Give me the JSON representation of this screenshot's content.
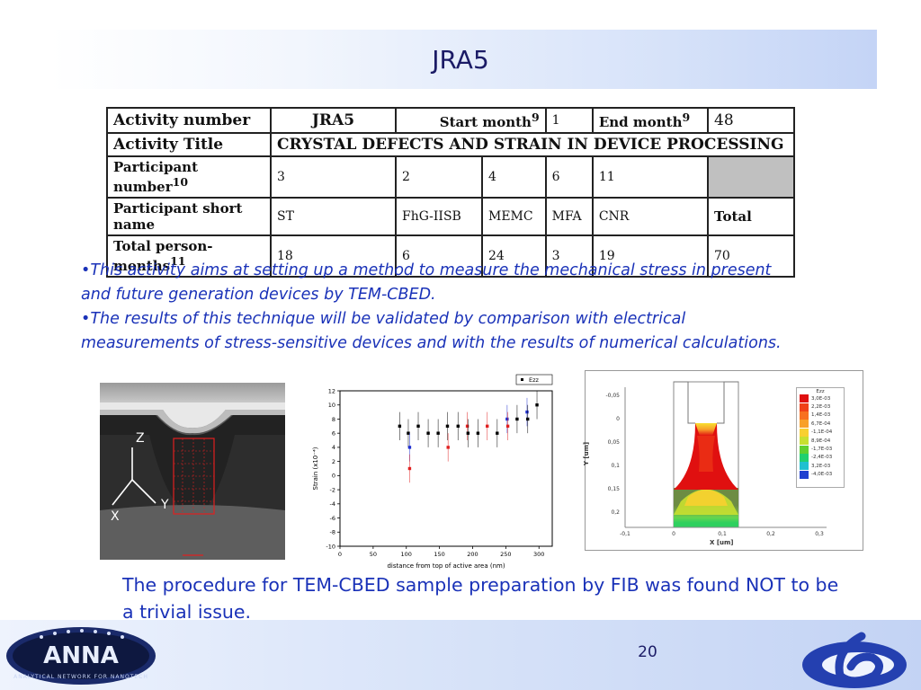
{
  "slide": {
    "title": "JRA5",
    "page_number": "20"
  },
  "activity_table": {
    "activity_number_label": "Activity number",
    "activity_number": "JRA5",
    "start_month_label": "Start month",
    "start_month_sup": "9",
    "start_month": "1",
    "end_month_label": "End month",
    "end_month_sup": "9",
    "end_month": "48",
    "activity_title_label": "Activity Title",
    "activity_title": "CRYSTAL DEFECTS AND STRAIN IN DEVICE PROCESSING",
    "participant_number_label": "Participant number",
    "participant_number_sup": "10",
    "participant_numbers": [
      "3",
      "2",
      "4",
      "6",
      "11"
    ],
    "participant_short_name_label": "Participant short name",
    "participant_short_names": [
      "ST",
      "FhG-IISB",
      "MEMC",
      "MFA",
      "CNR"
    ],
    "total_label": "Total",
    "total_person_months_label": "Total person-months",
    "total_person_months_sup": "11",
    "person_months": [
      "18",
      "6",
      "24",
      "3",
      "19"
    ],
    "total_person_months": "70"
  },
  "bullets": [
    "•This activity aims at setting up a method to measure the mechanical stress in present and future generation devices by TEM-CBED.",
    "•The results of this technique will be validated by comparison with electrical measurements of stress-sensitive devices and with the results of numerical calculations."
  ],
  "fib_image": {
    "axis_z": "Z",
    "axis_y": "Y",
    "axis_x": "X"
  },
  "chart_data": [
    {
      "type": "scatter",
      "xlabel": "distance from top of active area (nm)",
      "ylabel": "Strain (x10⁻⁴)",
      "xlim": [
        0,
        320
      ],
      "ylim": [
        -10,
        12
      ],
      "x_ticks": [
        0,
        50,
        100,
        150,
        200,
        250,
        300
      ],
      "y_ticks": [
        -10,
        -8,
        -6,
        -4,
        -2,
        0,
        2,
        4,
        6,
        8,
        10,
        12
      ],
      "legend": [
        "Ezz"
      ],
      "legend_position": "top-right",
      "points": [
        {
          "x": 90,
          "y": 7,
          "err": 2,
          "color": "#000000"
        },
        {
          "x": 103,
          "y": 6,
          "err": 2,
          "color": "#000000"
        },
        {
          "x": 105,
          "y": 4,
          "err": 2,
          "color": "#1f2fd0"
        },
        {
          "x": 105,
          "y": 1,
          "err": 2,
          "color": "#e02020"
        },
        {
          "x": 118,
          "y": 7,
          "err": 2,
          "color": "#000000"
        },
        {
          "x": 133,
          "y": 6,
          "err": 2,
          "color": "#000000"
        },
        {
          "x": 148,
          "y": 6,
          "err": 2,
          "color": "#000000"
        },
        {
          "x": 162,
          "y": 7,
          "err": 2,
          "color": "#000000"
        },
        {
          "x": 163,
          "y": 4,
          "err": 2,
          "color": "#e02020"
        },
        {
          "x": 178,
          "y": 7,
          "err": 2,
          "color": "#000000"
        },
        {
          "x": 192,
          "y": 7,
          "err": 2,
          "color": "#e02020"
        },
        {
          "x": 193,
          "y": 6,
          "err": 2,
          "color": "#000000"
        },
        {
          "x": 208,
          "y": 6,
          "err": 2,
          "color": "#000000"
        },
        {
          "x": 222,
          "y": 7,
          "err": 2,
          "color": "#e02020"
        },
        {
          "x": 237,
          "y": 6,
          "err": 2,
          "color": "#000000"
        },
        {
          "x": 252,
          "y": 8,
          "err": 2,
          "color": "#1f2fd0"
        },
        {
          "x": 253,
          "y": 7,
          "err": 2,
          "color": "#e02020"
        },
        {
          "x": 267,
          "y": 8,
          "err": 2,
          "color": "#000000"
        },
        {
          "x": 282,
          "y": 9,
          "err": 2,
          "color": "#1f2fd0"
        },
        {
          "x": 283,
          "y": 8,
          "err": 2,
          "color": "#000000"
        },
        {
          "x": 297,
          "y": 10,
          "err": 2,
          "color": "#000000"
        }
      ]
    },
    {
      "type": "heatmap",
      "xlabel": "X [um]",
      "ylabel": "Y [um]",
      "x_ticks": [
        "-0,1",
        "0",
        "0,1",
        "0,2",
        "0,3"
      ],
      "y_ticks": [
        "-0,05",
        "0",
        "0,05",
        "0,1",
        "0,15",
        "0,2"
      ],
      "legend_title": "Ezz",
      "legend_position": "top-right",
      "legend_levels": [
        {
          "label": "3,0E-03",
          "color": "#e01010"
        },
        {
          "label": "2,2E-03",
          "color": "#f04018"
        },
        {
          "label": "1,4E-03",
          "color": "#f87020"
        },
        {
          "label": "6,7E-04",
          "color": "#f8a028"
        },
        {
          "label": "-1,1E-04",
          "color": "#f8d030"
        },
        {
          "label": "8,9E-04",
          "color": "#c8e030"
        },
        {
          "label": "-1,7E-03",
          "color": "#60d030"
        },
        {
          "label": "-2,4E-03",
          "color": "#20d070"
        },
        {
          "label": "3,2E-03",
          "color": "#20c0d0"
        },
        {
          "label": "-4,0E-03",
          "color": "#2040d0"
        }
      ]
    }
  ],
  "conclusion": "The procedure for TEM-CBED sample preparation by FIB was found NOT to be a trivial issue.",
  "logos": {
    "anna_text": "ANNA",
    "anna_tagline": "ANALYTICAL NETWORK FOR NANOTECH"
  }
}
